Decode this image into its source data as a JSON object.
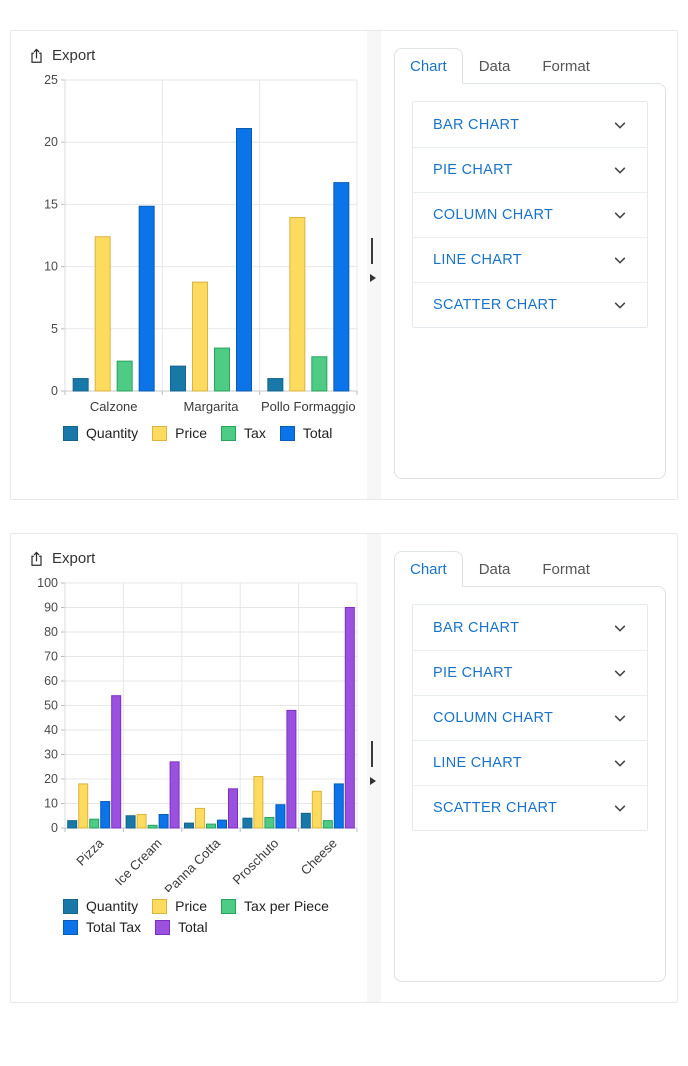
{
  "theme": {
    "accent_blue": "#1a73c9",
    "tab_inactive_text": "#555555",
    "panel_border": "#dee2e6"
  },
  "panels": [
    {
      "toolbar": {
        "export_label": "Export",
        "export_icon": "box-arrow-up-icon"
      },
      "splitter": {
        "handle_icon": "drag-handle-icon",
        "collapse_icon": "triangle-right-icon"
      },
      "tabs": [
        {
          "label": "Chart",
          "active": true
        },
        {
          "label": "Data",
          "active": false
        },
        {
          "label": "Format",
          "active": false
        }
      ],
      "chart_types": [
        {
          "label": "BAR CHART",
          "icon": "chevron-down-icon"
        },
        {
          "label": "PIE CHART",
          "icon": "chevron-down-icon"
        },
        {
          "label": "COLUMN CHART",
          "icon": "chevron-down-icon"
        },
        {
          "label": "LINE CHART",
          "icon": "chevron-down-icon"
        },
        {
          "label": "SCATTER CHART",
          "icon": "chevron-down-icon"
        }
      ],
      "chart_data": {
        "type": "bar",
        "title": "",
        "categories": [
          "Calzone",
          "Margarita",
          "Pollo Formaggio"
        ],
        "series": [
          {
            "name": "Quantity",
            "color": "#1878a8",
            "stroke": "#14648c",
            "values": [
              1,
              2,
              1
            ]
          },
          {
            "name": "Price",
            "color": "#fcdb5f",
            "stroke": "#dcb33e",
            "values": [
              12.4,
              8.75,
              13.95
            ]
          },
          {
            "name": "Tax",
            "color": "#4ecb85",
            "stroke": "#27a25d",
            "values": [
              2.4,
              3.45,
              2.75
            ]
          },
          {
            "name": "Total",
            "color": "#0b74e8",
            "stroke": "#0a5bb5",
            "values": [
              14.85,
              21.1,
              16.75
            ]
          }
        ],
        "xlabel": "",
        "ylabel": "",
        "ylim": [
          0,
          25
        ],
        "ytick": 5,
        "grid": true,
        "legend_position": "bottom",
        "rotate_labels": false
      }
    },
    {
      "toolbar": {
        "export_label": "Export",
        "export_icon": "box-arrow-up-icon"
      },
      "splitter": {
        "handle_icon": "drag-handle-icon",
        "collapse_icon": "triangle-right-icon"
      },
      "tabs": [
        {
          "label": "Chart",
          "active": true
        },
        {
          "label": "Data",
          "active": false
        },
        {
          "label": "Format",
          "active": false
        }
      ],
      "chart_types": [
        {
          "label": "BAR CHART",
          "icon": "chevron-down-icon"
        },
        {
          "label": "PIE CHART",
          "icon": "chevron-down-icon"
        },
        {
          "label": "COLUMN CHART",
          "icon": "chevron-down-icon"
        },
        {
          "label": "LINE CHART",
          "icon": "chevron-down-icon"
        },
        {
          "label": "SCATTER CHART",
          "icon": "chevron-down-icon"
        }
      ],
      "chart_data": {
        "type": "bar",
        "title": "",
        "categories": [
          "Pizza",
          "Ice Cream",
          "Panna Cotta",
          "Proschuto",
          "Cheese"
        ],
        "series": [
          {
            "name": "Quantity",
            "color": "#1878a8",
            "stroke": "#14648c",
            "values": [
              3,
              5,
              2,
              4,
              6
            ]
          },
          {
            "name": "Price",
            "color": "#fcdb5f",
            "stroke": "#dcb33e",
            "values": [
              18,
              5.5,
              8,
              21,
              15
            ]
          },
          {
            "name": "Tax per Piece",
            "color": "#4ecb85",
            "stroke": "#27a25d",
            "values": [
              3.6,
              1.1,
              1.6,
              4.3,
              3
            ]
          },
          {
            "name": "Total Tax",
            "color": "#0b74e8",
            "stroke": "#0a5bb5",
            "values": [
              10.8,
              5.5,
              3.2,
              9.5,
              18
            ]
          },
          {
            "name": "Total",
            "color": "#9b51e0",
            "stroke": "#7c2fc0",
            "values": [
              54,
              27,
              16,
              48,
              90
            ]
          }
        ],
        "xlabel": "",
        "ylabel": "",
        "ylim": [
          0,
          100
        ],
        "ytick": 10,
        "grid": true,
        "legend_position": "bottom",
        "rotate_labels": true
      }
    }
  ]
}
